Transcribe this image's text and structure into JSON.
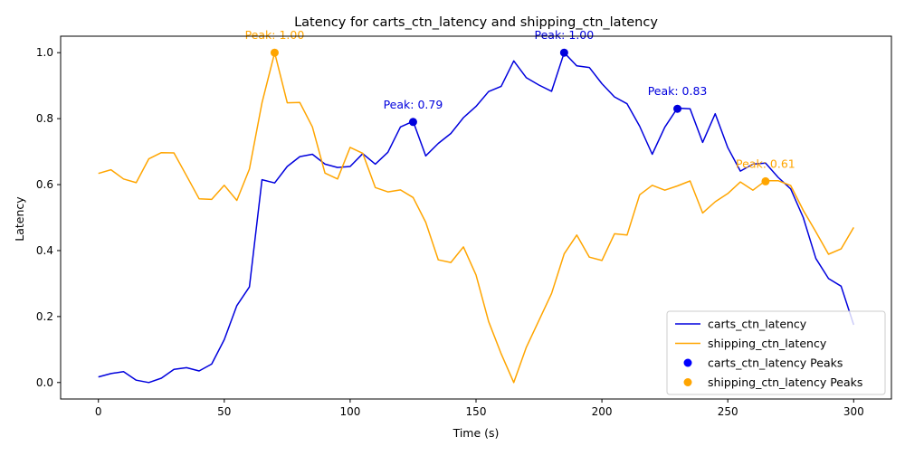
{
  "chart_data": {
    "type": "line",
    "title": "Latency for carts_ctn_latency and shipping_ctn_latency",
    "xlabel": "Time (s)",
    "ylabel": "Latency",
    "xlim": [
      -15,
      315
    ],
    "ylim": [
      -0.05,
      1.05
    ],
    "x_ticks": [
      0,
      50,
      100,
      150,
      200,
      250,
      300
    ],
    "y_ticks": [
      0.0,
      0.2,
      0.4,
      0.6,
      0.8,
      1.0
    ],
    "x_tick_labels": [
      "0",
      "50",
      "100",
      "150",
      "200",
      "250",
      "300"
    ],
    "y_tick_labels": [
      "0.0",
      "0.2",
      "0.4",
      "0.6",
      "0.8",
      "1.0"
    ],
    "grid": false,
    "legend_position": "bottom-right",
    "x": [
      0,
      5,
      10,
      15,
      20,
      25,
      30,
      35,
      40,
      45,
      50,
      55,
      60,
      65,
      70,
      75,
      80,
      85,
      90,
      95,
      100,
      105,
      110,
      115,
      120,
      125,
      130,
      135,
      140,
      145,
      150,
      155,
      160,
      165,
      170,
      175,
      180,
      185,
      190,
      195,
      200,
      205,
      210,
      215,
      220,
      225,
      230,
      235,
      240,
      245,
      250,
      255,
      260,
      265,
      270,
      275,
      280,
      285,
      290,
      295,
      300
    ],
    "series": [
      {
        "name": "carts_ctn_latency",
        "color": "#0000dd",
        "values": [
          0.017,
          0.027,
          0.033,
          0.007,
          0.0,
          0.013,
          0.04,
          0.045,
          0.035,
          0.056,
          0.13,
          0.233,
          0.29,
          0.615,
          0.605,
          0.655,
          0.685,
          0.692,
          0.662,
          0.652,
          0.655,
          0.694,
          0.662,
          0.698,
          0.775,
          0.792,
          0.687,
          0.725,
          0.755,
          0.803,
          0.837,
          0.882,
          0.898,
          0.975,
          0.924,
          0.902,
          0.883,
          1.0,
          0.96,
          0.955,
          0.906,
          0.866,
          0.845,
          0.777,
          0.692,
          0.774,
          0.832,
          0.83,
          0.728,
          0.815,
          0.712,
          0.641,
          0.662,
          0.665,
          0.622,
          0.587,
          0.5,
          0.376,
          0.315,
          0.292,
          0.175
        ]
      },
      {
        "name": "shipping_ctn_latency",
        "color": "#ffa500",
        "values": [
          0.634,
          0.645,
          0.617,
          0.606,
          0.678,
          0.697,
          0.696,
          0.627,
          0.557,
          0.555,
          0.598,
          0.552,
          0.647,
          0.848,
          1.0,
          0.848,
          0.849,
          0.775,
          0.635,
          0.617,
          0.713,
          0.695,
          0.591,
          0.578,
          0.584,
          0.561,
          0.486,
          0.372,
          0.364,
          0.411,
          0.326,
          0.185,
          0.087,
          0.0,
          0.107,
          0.188,
          0.27,
          0.39,
          0.447,
          0.38,
          0.37,
          0.451,
          0.447,
          0.569,
          0.598,
          0.583,
          0.596,
          0.611,
          0.514,
          0.548,
          0.573,
          0.608,
          0.583,
          0.612,
          0.612,
          0.597,
          0.522,
          0.457,
          0.389,
          0.405,
          0.47
        ]
      }
    ],
    "peaks": [
      {
        "series": "carts_ctn_latency",
        "x": 125,
        "y": 0.79,
        "label": "Peak: 0.79"
      },
      {
        "series": "carts_ctn_latency",
        "x": 185,
        "y": 1.0,
        "label": "Peak: 1.00"
      },
      {
        "series": "carts_ctn_latency",
        "x": 230,
        "y": 0.83,
        "label": "Peak: 0.83"
      },
      {
        "series": "shipping_ctn_latency",
        "x": 70,
        "y": 1.0,
        "label": "Peak: 1.00"
      },
      {
        "series": "shipping_ctn_latency",
        "x": 265,
        "y": 0.61,
        "label": "Peak: 0.61"
      }
    ],
    "legend": [
      {
        "label": "carts_ctn_latency",
        "kind": "line",
        "color": "#0000dd"
      },
      {
        "label": "shipping_ctn_latency",
        "kind": "line",
        "color": "#ffa500"
      },
      {
        "label": "carts_ctn_latency Peaks",
        "kind": "marker",
        "color": "#0000ff"
      },
      {
        "label": "shipping_ctn_latency Peaks",
        "kind": "marker",
        "color": "#ffa500"
      }
    ]
  }
}
